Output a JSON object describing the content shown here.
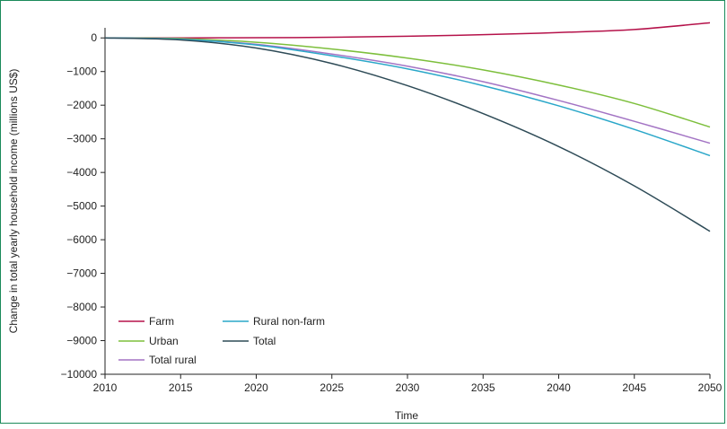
{
  "chart_data": {
    "type": "line",
    "title": "",
    "xlabel": "Time",
    "ylabel": "Change in total yearly household income (millions US$)",
    "xlim": [
      2010,
      2050
    ],
    "ylim": [
      -10000,
      300
    ],
    "x_ticks": [
      2010,
      2015,
      2020,
      2025,
      2030,
      2035,
      2040,
      2045,
      2050
    ],
    "y_ticks": [
      0,
      -1000,
      -2000,
      -3000,
      -4000,
      -5000,
      -6000,
      -7000,
      -8000,
      -9000,
      -10000
    ],
    "x_tick_labels": [
      "2010",
      "2015",
      "2020",
      "2025",
      "2030",
      "2035",
      "2040",
      "2045",
      "2050"
    ],
    "y_tick_labels": [
      "0",
      "−1000",
      "−2000",
      "−3000",
      "−4000",
      "−5000",
      "−6000",
      "−7000",
      "−8000",
      "−9000",
      "−10000"
    ],
    "grid": false,
    "legend_position": "bottom-left",
    "x": [
      2010,
      2015,
      2020,
      2025,
      2030,
      2035,
      2040,
      2045,
      2050
    ],
    "series": [
      {
        "name": "Farm",
        "color": "#b5124a",
        "values": [
          0,
          0,
          5,
          20,
          50,
          95,
          160,
          250,
          450
        ]
      },
      {
        "name": "Urban",
        "color": "#7dbf3c",
        "values": [
          0,
          -20,
          -130,
          -330,
          -600,
          -950,
          -1400,
          -1950,
          -2650
        ]
      },
      {
        "name": "Total rural",
        "color": "#a374c4",
        "values": [
          0,
          -40,
          -190,
          -480,
          -840,
          -1300,
          -1860,
          -2480,
          -3130
        ]
      },
      {
        "name": "Rural non-farm",
        "color": "#2aa7c9",
        "values": [
          0,
          -40,
          -210,
          -530,
          -920,
          -1420,
          -2020,
          -2720,
          -3500
        ]
      },
      {
        "name": "Total",
        "color": "#2e4b57",
        "values": [
          0,
          -60,
          -300,
          -760,
          -1420,
          -2250,
          -3230,
          -4400,
          -5750
        ]
      }
    ]
  },
  "legend": {
    "farm": "Farm",
    "rural_non_farm": "Rural non-farm",
    "urban": "Urban",
    "total": "Total",
    "total_rural": "Total rural"
  }
}
